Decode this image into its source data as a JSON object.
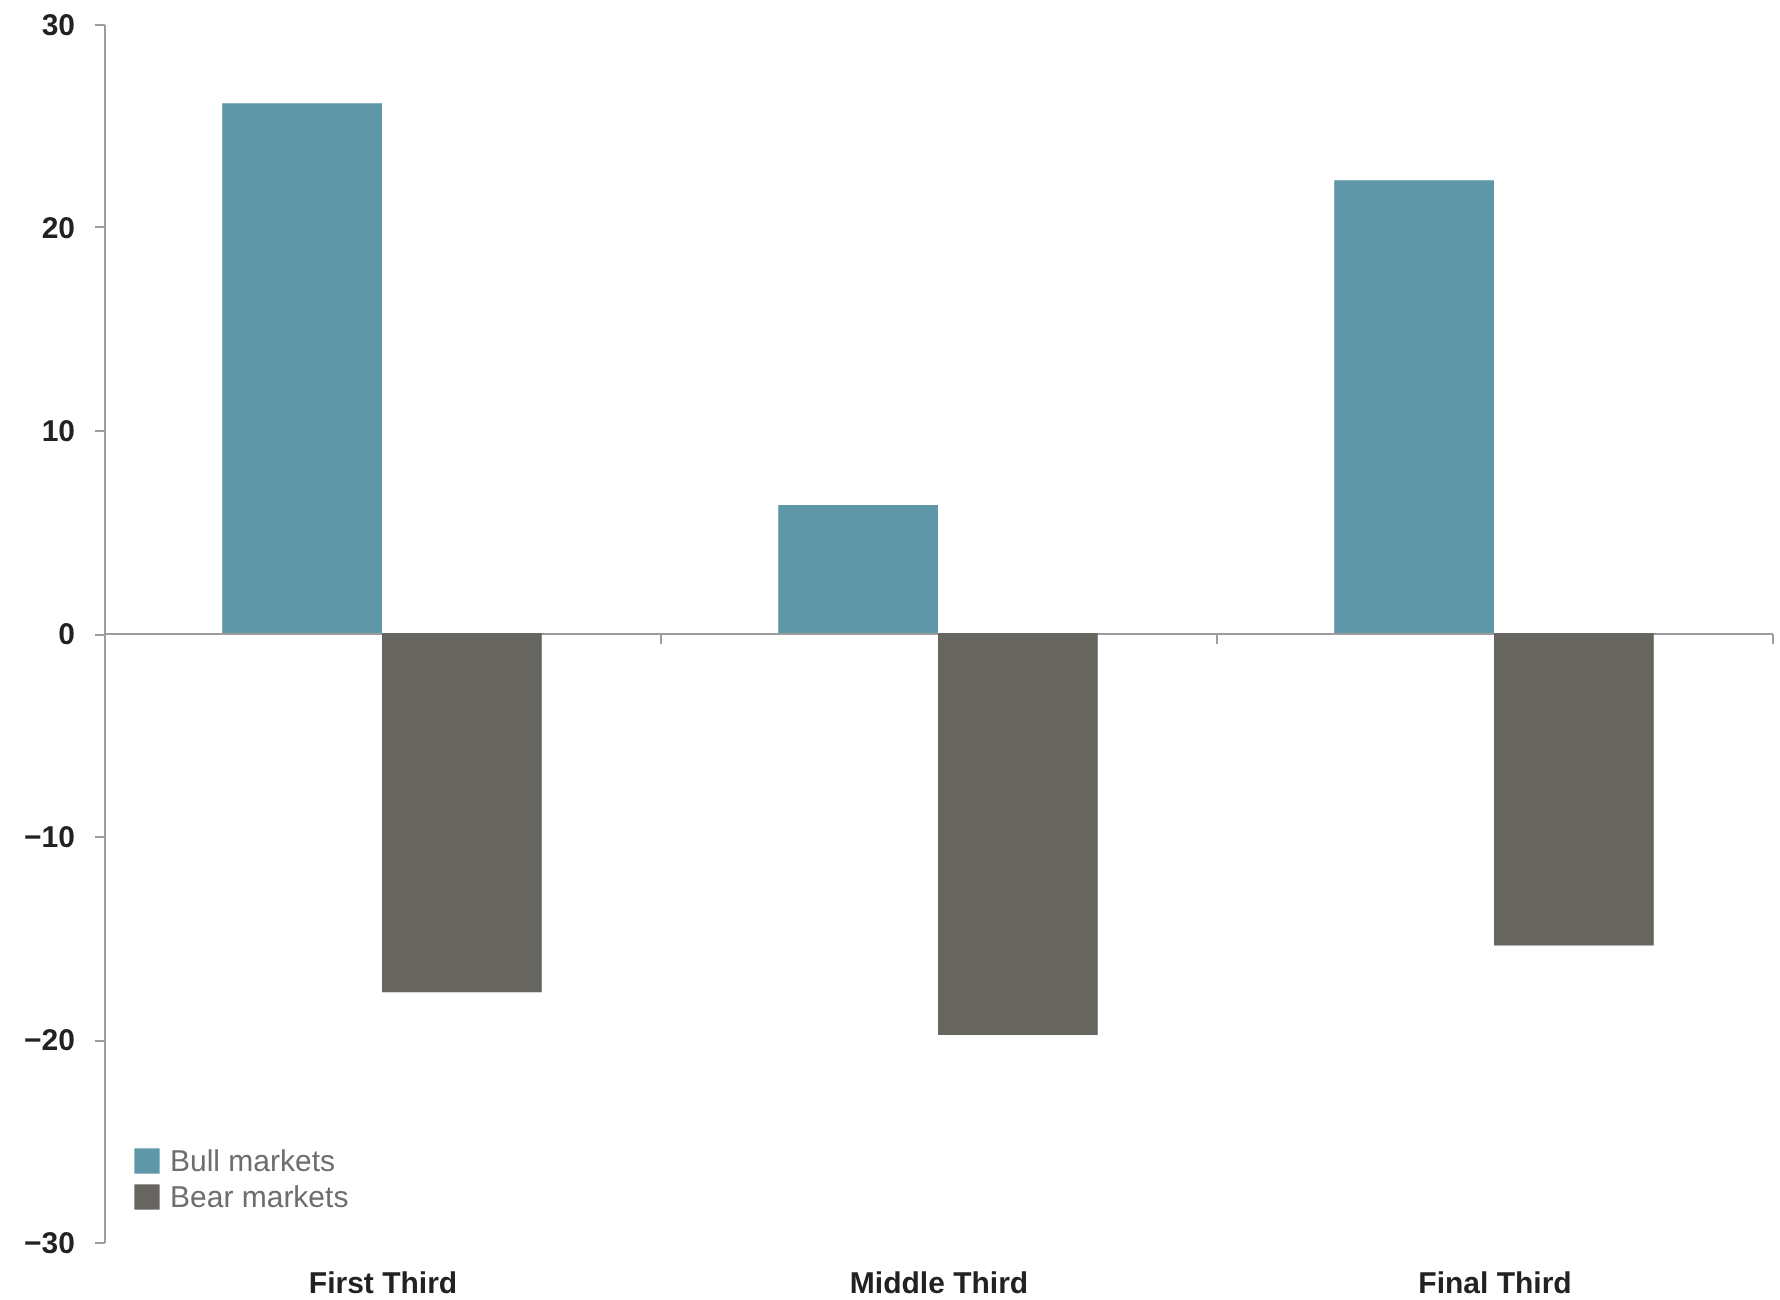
{
  "chart_data": {
    "type": "bar",
    "categories": [
      "First Third",
      "Middle Third",
      "Final Third"
    ],
    "series": [
      {
        "name": "Bull markets",
        "color": "#5e98a8",
        "values": [
          26.1,
          6.3,
          22.3
        ]
      },
      {
        "name": "Bear markets",
        "color": "#666560",
        "values": [
          -17.7,
          -19.8,
          -15.4
        ]
      }
    ],
    "ylim": [
      -30,
      30
    ],
    "yticks": [
      -30,
      -20,
      -10,
      0,
      10,
      20,
      30
    ],
    "legend": "bottom left"
  }
}
